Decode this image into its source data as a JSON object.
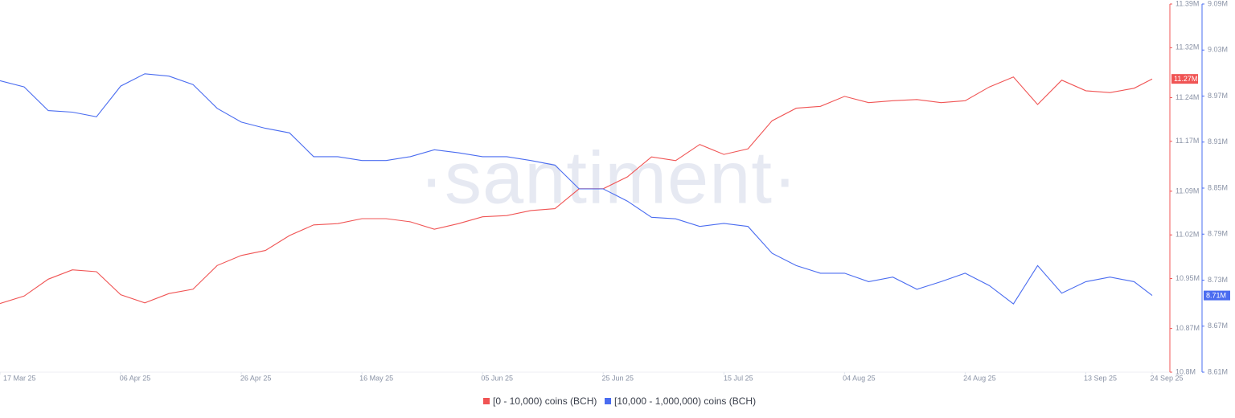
{
  "chart_data": {
    "type": "line",
    "watermark": "·santiment·",
    "x": [
      "2025-03-17",
      "2025-03-21",
      "2025-03-25",
      "2025-03-29",
      "2025-04-02",
      "2025-04-06",
      "2025-04-10",
      "2025-04-14",
      "2025-04-18",
      "2025-04-22",
      "2025-04-26",
      "2025-04-30",
      "2025-05-04",
      "2025-05-08",
      "2025-05-12",
      "2025-05-16",
      "2025-05-20",
      "2025-05-24",
      "2025-05-28",
      "2025-06-01",
      "2025-06-05",
      "2025-06-09",
      "2025-06-13",
      "2025-06-17",
      "2025-06-21",
      "2025-06-25",
      "2025-06-29",
      "2025-07-03",
      "2025-07-07",
      "2025-07-11",
      "2025-07-15",
      "2025-07-19",
      "2025-07-23",
      "2025-07-27",
      "2025-07-31",
      "2025-08-04",
      "2025-08-08",
      "2025-08-12",
      "2025-08-16",
      "2025-08-20",
      "2025-08-24",
      "2025-08-28",
      "2025-09-01",
      "2025-09-05",
      "2025-09-09",
      "2025-09-13",
      "2025-09-17",
      "2025-09-21",
      "2025-09-24"
    ],
    "series": [
      {
        "name": "[0 - 10,000) coins (BCH)",
        "color": "#f05454",
        "axis": "y",
        "last_label": "11.27M",
        "values": [
          10910000,
          10922000,
          10949000,
          10964000,
          10961000,
          10924000,
          10911000,
          10926000,
          10933000,
          10971000,
          10987000,
          10995000,
          11019000,
          11036000,
          11038000,
          11046000,
          11046000,
          11041000,
          11029000,
          11038000,
          11049000,
          11051000,
          11059000,
          11062000,
          11094000,
          11094000,
          11113000,
          11145000,
          11139000,
          11165000,
          11149000,
          11158000,
          11203000,
          11223000,
          11226000,
          11242000,
          11232000,
          11235000,
          11237000,
          11232000,
          11235000,
          11257000,
          11273000,
          11229000,
          11268000,
          11251000,
          11248000,
          11255000,
          11270000
        ]
      },
      {
        "name": "[10,000 - 1,000,000) coins (BCH)",
        "color": "#4a6cf0",
        "axis": "y2",
        "last_label": "8.71M",
        "values": [
          8990000,
          8982000,
          8951000,
          8949000,
          8943000,
          8983000,
          8999000,
          8996000,
          8985000,
          8954000,
          8936000,
          8928000,
          8922000,
          8891000,
          8891000,
          8886000,
          8886000,
          8891000,
          8900000,
          8896000,
          8891000,
          8891000,
          8886000,
          8880000,
          8849000,
          8849000,
          8833000,
          8812000,
          8810000,
          8800000,
          8804000,
          8800000,
          8765000,
          8749000,
          8739000,
          8739000,
          8728000,
          8734000,
          8718000,
          8728000,
          8739000,
          8723000,
          8699000,
          8749000,
          8713000,
          8728000,
          8734000,
          8728000,
          8710000
        ]
      }
    ],
    "xticks": [
      {
        "value": "2025-03-17",
        "label": "17 Mar 25"
      },
      {
        "value": "2025-04-06",
        "label": "06 Apr 25"
      },
      {
        "value": "2025-04-26",
        "label": "26 Apr 25"
      },
      {
        "value": "2025-05-16",
        "label": "16 May 25"
      },
      {
        "value": "2025-06-05",
        "label": "05 Jun 25"
      },
      {
        "value": "2025-06-25",
        "label": "25 Jun 25"
      },
      {
        "value": "2025-07-15",
        "label": "15 Jul 25"
      },
      {
        "value": "2025-08-04",
        "label": "04 Aug 25"
      },
      {
        "value": "2025-08-24",
        "label": "24 Aug 25"
      },
      {
        "value": "2025-09-13",
        "label": "13 Sep 25"
      },
      {
        "value": "2025-09-24",
        "label": "24 Sep 25"
      }
    ],
    "ylim": [
      10800000,
      11390000
    ],
    "yticks": [
      {
        "value": 10800000,
        "label": "10.8M"
      },
      {
        "value": 10870000,
        "label": "10.87M"
      },
      {
        "value": 10950000,
        "label": "10.95M"
      },
      {
        "value": 11020000,
        "label": "11.02M"
      },
      {
        "value": 11090000,
        "label": "11.09M"
      },
      {
        "value": 11170000,
        "label": "11.17M"
      },
      {
        "value": 11240000,
        "label": "11.24M"
      },
      {
        "value": 11320000,
        "label": "11.32M"
      },
      {
        "value": 11390000,
        "label": "11.39M"
      }
    ],
    "y2lim": [
      8610000,
      9090000
    ],
    "y2ticks": [
      {
        "value": 8610000,
        "label": "8.61M"
      },
      {
        "value": 8670000,
        "label": "8.67M"
      },
      {
        "value": 8730000,
        "label": "8.73M"
      },
      {
        "value": 8790000,
        "label": "8.79M"
      },
      {
        "value": 8850000,
        "label": "8.85M"
      },
      {
        "value": 8910000,
        "label": "8.91M"
      },
      {
        "value": 8970000,
        "label": "8.97M"
      },
      {
        "value": 9030000,
        "label": "9.03M"
      },
      {
        "value": 9090000,
        "label": "9.09M"
      }
    ],
    "grid": false
  }
}
